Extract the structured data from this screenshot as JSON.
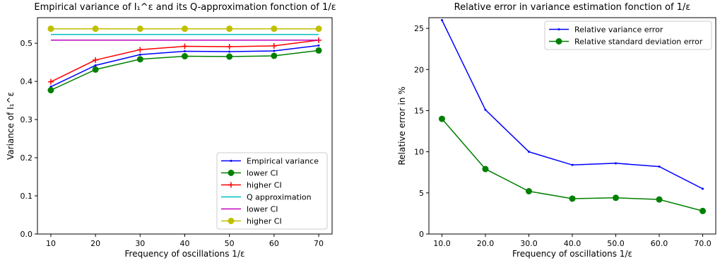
{
  "chart_data": [
    {
      "type": "line",
      "title": "Empirical variance of I₁^ε and its Q-approximation fonction of 1/ε",
      "xlabel": "Frequency of oscillations 1/ε",
      "ylabel": "Variance of I₁^ε",
      "x": [
        10,
        20,
        30,
        40,
        50,
        60,
        70
      ],
      "xticks": [
        "10",
        "20",
        "30",
        "40",
        "50",
        "60",
        "70"
      ],
      "xlim": [
        7,
        73
      ],
      "yticks": [
        "0.0",
        "0.1",
        "0.2",
        "0.3",
        "0.4",
        "0.5"
      ],
      "ylim": [
        0.0,
        0.567
      ],
      "grid": false,
      "legend_position": "lower-right",
      "series": [
        {
          "name": "Empirical variance",
          "color": "#0000ff",
          "marker": "point",
          "values": [
            0.386,
            0.442,
            0.47,
            0.479,
            0.478,
            0.48,
            0.494
          ]
        },
        {
          "name": "lower CI",
          "color": "#008000",
          "marker": "circle",
          "values": [
            0.377,
            0.431,
            0.458,
            0.466,
            0.465,
            0.467,
            0.481
          ]
        },
        {
          "name": "higher CI",
          "color": "#ff0000",
          "marker": "plus",
          "values": [
            0.399,
            0.456,
            0.483,
            0.492,
            0.491,
            0.493,
            0.508
          ]
        },
        {
          "name": "Q approximation",
          "color": "#00bfbf",
          "marker": "none",
          "values": [
            0.523,
            0.523,
            0.523,
            0.523,
            0.523,
            0.523,
            0.523
          ]
        },
        {
          "name": "lower CI",
          "color": "#bf00bf",
          "marker": "none",
          "values": [
            0.508,
            0.508,
            0.508,
            0.508,
            0.508,
            0.508,
            0.508
          ]
        },
        {
          "name": "higher CI",
          "color": "#bfbf00",
          "marker": "circle",
          "values": [
            0.538,
            0.538,
            0.538,
            0.538,
            0.538,
            0.538,
            0.538
          ]
        }
      ]
    },
    {
      "type": "line",
      "title": "Relative error in variance estimation fonction of 1/ε",
      "xlabel": "Frequency of oscillations 1/ε",
      "ylabel": "Relative error in %",
      "x": [
        10,
        20,
        30,
        40,
        50,
        60,
        70
      ],
      "xticks": [
        "10.0",
        "20.0",
        "30.0",
        "40.0",
        "50.0",
        "60.0",
        "70.0"
      ],
      "xlim": [
        7,
        73
      ],
      "yticks": [
        "0",
        "5",
        "10",
        "15",
        "20",
        "25"
      ],
      "ylim": [
        0,
        26.3
      ],
      "grid": false,
      "legend_position": "upper-right",
      "series": [
        {
          "name": "Relative variance error",
          "color": "#0000ff",
          "marker": "point",
          "values": [
            26.0,
            15.1,
            10.0,
            8.4,
            8.6,
            8.2,
            5.5
          ]
        },
        {
          "name": "Relative standard deviation error",
          "color": "#008000",
          "marker": "circle",
          "values": [
            14.0,
            7.9,
            5.2,
            4.3,
            4.4,
            4.2,
            2.8
          ]
        }
      ]
    }
  ]
}
